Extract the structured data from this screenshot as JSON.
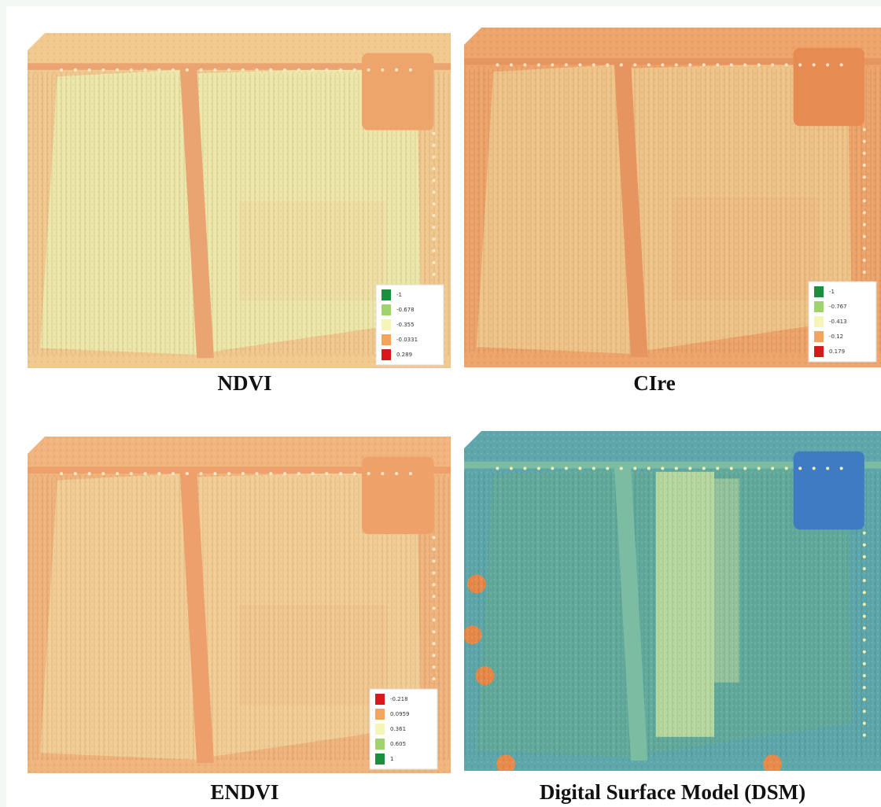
{
  "panels": [
    {
      "title": "NDVI",
      "legend": [
        "-1",
        "-0.678",
        "-0.355",
        "-0.0331",
        "0.289"
      ]
    },
    {
      "title": "CIre",
      "legend": [
        "-1",
        "-0.767",
        "-0.413",
        "-0.12",
        "0.179"
      ]
    },
    {
      "title": "ENDVI",
      "legend": [
        "-0.218",
        "0.0959",
        "0.361",
        "0.605",
        "1"
      ]
    },
    {
      "title": "Digital Surface Model (DSM)"
    }
  ]
}
